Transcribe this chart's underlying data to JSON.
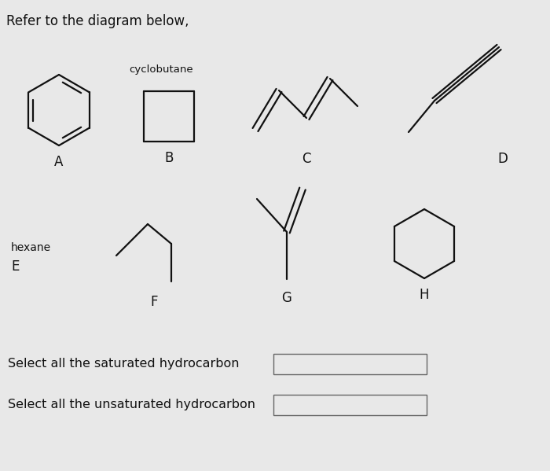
{
  "title": "Refer to the diagram below,",
  "background_color": "#e8e8e8",
  "text_color": "#111111",
  "input_box_labels": [
    "Select all the saturated hydrocarbon",
    "Select all the unsaturated hydrocarbon"
  ],
  "figsize": [
    7.0,
    5.99
  ],
  "dpi": 100
}
